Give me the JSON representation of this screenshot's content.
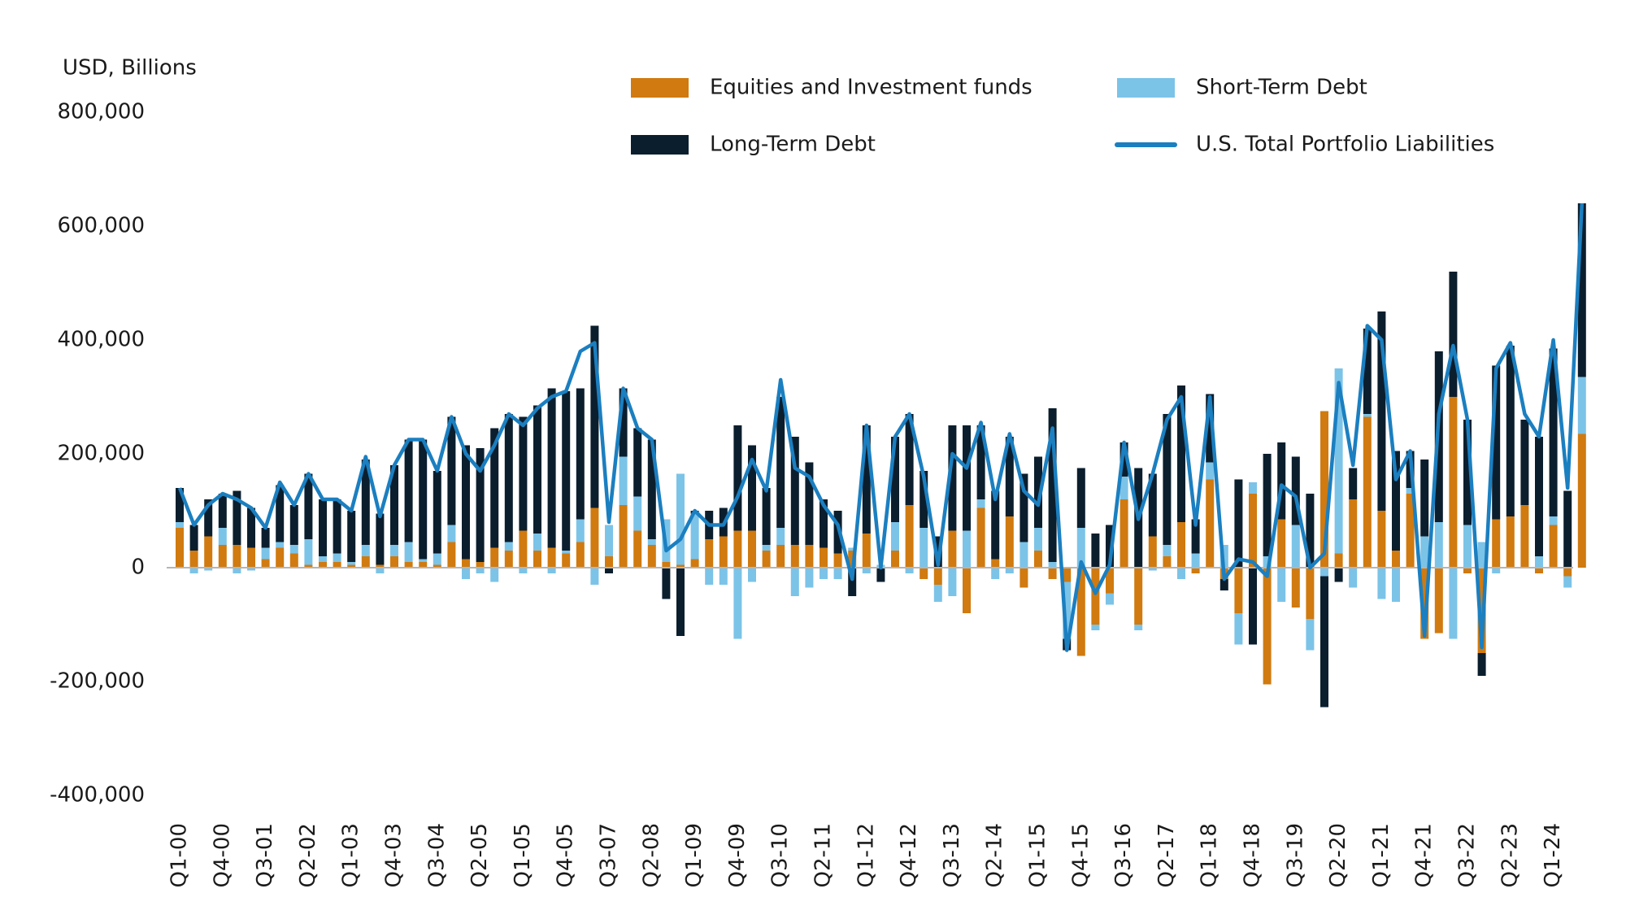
{
  "chart_data": {
    "type": "bar",
    "stacked": true,
    "y_label": "USD, Billions",
    "categories": [
      "Q1-00",
      null,
      null,
      "Q4-00",
      null,
      null,
      "Q3-01",
      null,
      null,
      "Q2-02",
      null,
      null,
      "Q1-03",
      null,
      null,
      "Q4-03",
      null,
      null,
      "Q3-04",
      null,
      null,
      "Q2-05",
      null,
      null,
      "Q1-05",
      null,
      null,
      "Q4-05",
      null,
      null,
      "Q3-07",
      null,
      null,
      "Q2-08",
      null,
      null,
      "Q1-09",
      null,
      null,
      "Q4-09",
      null,
      null,
      "Q3-10",
      null,
      null,
      "Q2-11",
      null,
      null,
      "Q1-12",
      null,
      null,
      "Q4-12",
      null,
      null,
      "Q3-13",
      null,
      null,
      "Q2-14",
      null,
      null,
      "Q1-15",
      null,
      null,
      "Q4-15",
      null,
      null,
      "Q3-16",
      null,
      null,
      "Q2-17",
      null,
      null,
      "Q1-18",
      null,
      null,
      "Q4-18",
      null,
      null,
      "Q3-19",
      null,
      null,
      "Q2-20",
      null,
      null,
      "Q1-21",
      null,
      null,
      "Q4-21",
      null,
      null,
      "Q3-22",
      null,
      null,
      "Q2-23",
      null,
      null,
      "Q1-24",
      null,
      null
    ],
    "series": [
      {
        "name": "Equities and Investment funds",
        "color": "#d07a0f",
        "type": "bar",
        "values": [
          70000,
          30000,
          55000,
          40000,
          40000,
          35000,
          15000,
          35000,
          25000,
          5000,
          10000,
          10000,
          5000,
          20000,
          5000,
          20000,
          10000,
          10000,
          5000,
          45000,
          15000,
          10000,
          35000,
          30000,
          65000,
          30000,
          35000,
          25000,
          45000,
          105000,
          20000,
          110000,
          65000,
          40000,
          10000,
          5000,
          15000,
          50000,
          55000,
          65000,
          65000,
          30000,
          40000,
          40000,
          40000,
          35000,
          25000,
          30000,
          60000,
          0,
          30000,
          110000,
          -20000,
          -30000,
          65000,
          -80000,
          105000,
          15000,
          90000,
          -35000,
          30000,
          -20000,
          -25000,
          -155000,
          -100000,
          -45000,
          120000,
          -100000,
          55000,
          20000,
          80000,
          -10000,
          155000,
          -20000,
          -80000,
          130000,
          -205000,
          85000,
          -70000,
          -90000,
          275000,
          25000,
          120000,
          265000,
          100000,
          30000,
          130000,
          -125000,
          -115000,
          300000,
          -10000,
          -150000,
          85000,
          90000,
          110000,
          -10000,
          75000,
          -15000,
          235000
        ]
      },
      {
        "name": "Short-Term Debt",
        "color": "#7cc3e8",
        "type": "bar",
        "values": [
          10000,
          -10000,
          -5000,
          30000,
          -10000,
          -5000,
          20000,
          10000,
          15000,
          45000,
          10000,
          15000,
          5000,
          20000,
          -10000,
          20000,
          35000,
          5000,
          20000,
          30000,
          -20000,
          -10000,
          -25000,
          15000,
          -10000,
          30000,
          -10000,
          5000,
          40000,
          -30000,
          55000,
          85000,
          60000,
          10000,
          75000,
          160000,
          80000,
          -30000,
          -30000,
          -125000,
          -25000,
          10000,
          30000,
          -50000,
          -35000,
          -20000,
          -20000,
          5000,
          -10000,
          5000,
          50000,
          -10000,
          70000,
          -30000,
          -50000,
          65000,
          15000,
          -20000,
          -10000,
          45000,
          40000,
          10000,
          -100000,
          70000,
          -10000,
          -20000,
          40000,
          -10000,
          -5000,
          20000,
          -20000,
          25000,
          30000,
          40000,
          -55000,
          20000,
          20000,
          -60000,
          75000,
          -55000,
          -15000,
          325000,
          -35000,
          5000,
          -55000,
          -60000,
          10000,
          55000,
          80000,
          -125000,
          75000,
          45000,
          -10000,
          0,
          0,
          20000,
          15000,
          -20000,
          100000
        ]
      },
      {
        "name": "Long-Term Debt",
        "color": "#0b1e2d",
        "type": "bar",
        "values": [
          60000,
          45000,
          65000,
          60000,
          95000,
          70000,
          35000,
          100000,
          70000,
          115000,
          100000,
          95000,
          90000,
          150000,
          90000,
          140000,
          180000,
          210000,
          145000,
          190000,
          200000,
          200000,
          210000,
          225000,
          200000,
          225000,
          280000,
          280000,
          230000,
          320000,
          -10000,
          120000,
          120000,
          175000,
          -55000,
          -120000,
          5000,
          50000,
          50000,
          185000,
          150000,
          100000,
          230000,
          190000,
          145000,
          85000,
          75000,
          -50000,
          190000,
          -25000,
          150000,
          160000,
          100000,
          55000,
          185000,
          185000,
          130000,
          120000,
          140000,
          120000,
          125000,
          270000,
          -20000,
          105000,
          60000,
          75000,
          60000,
          175000,
          110000,
          230000,
          240000,
          60000,
          120000,
          -20000,
          155000,
          -135000,
          180000,
          135000,
          120000,
          130000,
          -230000,
          -25000,
          55000,
          150000,
          350000,
          175000,
          65000,
          135000,
          300000,
          220000,
          185000,
          -40000,
          270000,
          300000,
          150000,
          210000,
          295000,
          135000,
          305000
        ]
      },
      {
        "name": "U.S. Total Portfolio Liabilities",
        "color": "#1b7fc0",
        "type": "line",
        "values": [
          140000,
          75000,
          110000,
          130000,
          120000,
          105000,
          70000,
          150000,
          110000,
          165000,
          120000,
          120000,
          100000,
          195000,
          90000,
          180000,
          225000,
          225000,
          170000,
          265000,
          200000,
          170000,
          215000,
          270000,
          250000,
          280000,
          300000,
          310000,
          380000,
          395000,
          80000,
          315000,
          245000,
          225000,
          30000,
          50000,
          100000,
          75000,
          75000,
          125000,
          190000,
          135000,
          330000,
          175000,
          160000,
          110000,
          75000,
          -20000,
          250000,
          0,
          230000,
          270000,
          160000,
          5000,
          200000,
          175000,
          255000,
          120000,
          235000,
          135000,
          110000,
          245000,
          -145000,
          10000,
          -45000,
          5000,
          220000,
          85000,
          165000,
          260000,
          300000,
          75000,
          300000,
          -20000,
          15000,
          10000,
          -15000,
          145000,
          125000,
          0,
          25000,
          325000,
          180000,
          425000,
          400000,
          155000,
          205000,
          -120000,
          270000,
          390000,
          260000,
          -140000,
          350000,
          395000,
          270000,
          230000,
          400000,
          140000,
          640000
        ]
      }
    ],
    "ylim": [
      -400000,
      800000
    ],
    "yticks": [
      {
        "value": -400000,
        "label": "-400,000"
      },
      {
        "value": -200000,
        "label": "-200,000"
      },
      0,
      {
        "value": 200000,
        "label": "200,000"
      },
      {
        "value": 400000,
        "label": "400,000"
      },
      {
        "value": 600000,
        "label": "600,000"
      },
      {
        "value": 800000,
        "label": "800,000"
      }
    ],
    "grid": false
  }
}
